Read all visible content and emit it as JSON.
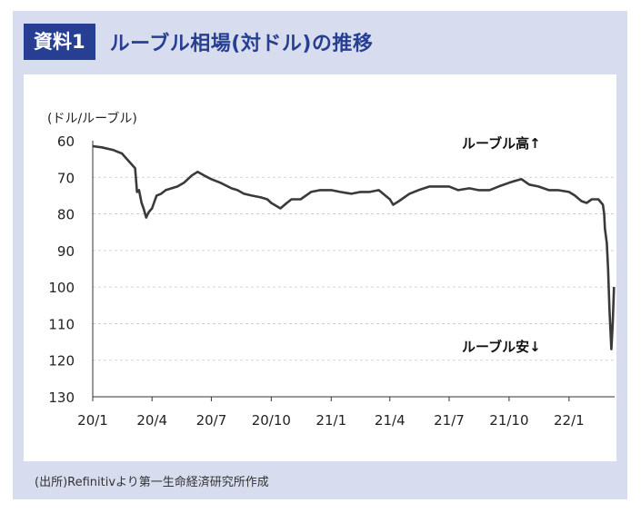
{
  "header": {
    "badge": "資料1",
    "title": "ルーブル相場(対ドル)の推移"
  },
  "footer": {
    "source": "(出所)Refinitivより第一生命経済研究所作成"
  },
  "colors": {
    "frame": "#d7dcee",
    "accent": "#273f93",
    "line": "#3a3a3a"
  },
  "chart_data": {
    "type": "line",
    "ylabel": "(ドル/ルーブル)",
    "y_inverted": true,
    "ylim": [
      60,
      130
    ],
    "yticks": [
      60,
      70,
      80,
      90,
      100,
      110,
      120,
      130
    ],
    "xlim": [
      "2020-01",
      "2022-03"
    ],
    "xticks": [
      "20/1",
      "20/4",
      "20/7",
      "20/10",
      "21/1",
      "21/4",
      "21/7",
      "21/10",
      "22/1"
    ],
    "grid": true,
    "annotations": [
      "ルーブル高↑",
      "ルーブル安↓"
    ],
    "series": [
      {
        "x": [
          "2020-01-01",
          "2020-01-15",
          "2020-02-01",
          "2020-02-15",
          "2020-02-25",
          "2020-03-01",
          "2020-03-06",
          "2020-03-09",
          "2020-03-12",
          "2020-03-16",
          "2020-03-19",
          "2020-03-23",
          "2020-03-27",
          "2020-04-01",
          "2020-04-08",
          "2020-04-15",
          "2020-04-22",
          "2020-05-01",
          "2020-05-10",
          "2020-05-20",
          "2020-06-01",
          "2020-06-10",
          "2020-06-20",
          "2020-07-01",
          "2020-07-15",
          "2020-08-01",
          "2020-08-10",
          "2020-08-20",
          "2020-09-01",
          "2020-09-15",
          "2020-09-25",
          "2020-10-01",
          "2020-10-15",
          "2020-10-25",
          "2020-11-01",
          "2020-11-15",
          "2020-12-01",
          "2020-12-15",
          "2021-01-01",
          "2021-01-15",
          "2021-02-01",
          "2021-02-15",
          "2021-03-01",
          "2021-03-15",
          "2021-04-01",
          "2021-04-06",
          "2021-04-15",
          "2021-05-01",
          "2021-05-15",
          "2021-06-01",
          "2021-06-15",
          "2021-07-01",
          "2021-07-15",
          "2021-08-01",
          "2021-08-15",
          "2021-09-01",
          "2021-09-15",
          "2021-10-01",
          "2021-10-10",
          "2021-10-20",
          "2021-11-01",
          "2021-11-15",
          "2021-12-01",
          "2021-12-15",
          "2022-01-01",
          "2022-01-10",
          "2022-01-20",
          "2022-01-28",
          "2022-02-05",
          "2022-02-15",
          "2022-02-22",
          "2022-02-24",
          "2022-02-25",
          "2022-02-28",
          "2022-03-02",
          "2022-03-04",
          "2022-03-07",
          "2022-03-09",
          "2022-03-11"
        ],
        "y": [
          61.5,
          61.8,
          62.5,
          63.5,
          65.5,
          66.5,
          67.5,
          74,
          73.5,
          77,
          78.5,
          81,
          79.5,
          78.5,
          75,
          74.5,
          73.5,
          73,
          72.5,
          71.5,
          69.5,
          68.5,
          69.5,
          70.5,
          71.5,
          73,
          73.5,
          74.5,
          75,
          75.5,
          76,
          77,
          78.5,
          77,
          76,
          76,
          74,
          73.5,
          73.5,
          74,
          74.5,
          74,
          74,
          73.5,
          76,
          77.5,
          76.5,
          74.5,
          73.5,
          72.5,
          72.5,
          72.5,
          73.5,
          73,
          73.5,
          73.5,
          72.5,
          71.5,
          71,
          70.5,
          72,
          72.5,
          73.5,
          73.5,
          74,
          75,
          76.5,
          77,
          76,
          76,
          77.5,
          80,
          84,
          88,
          95,
          106,
          117,
          110,
          100
        ]
      }
    ]
  }
}
